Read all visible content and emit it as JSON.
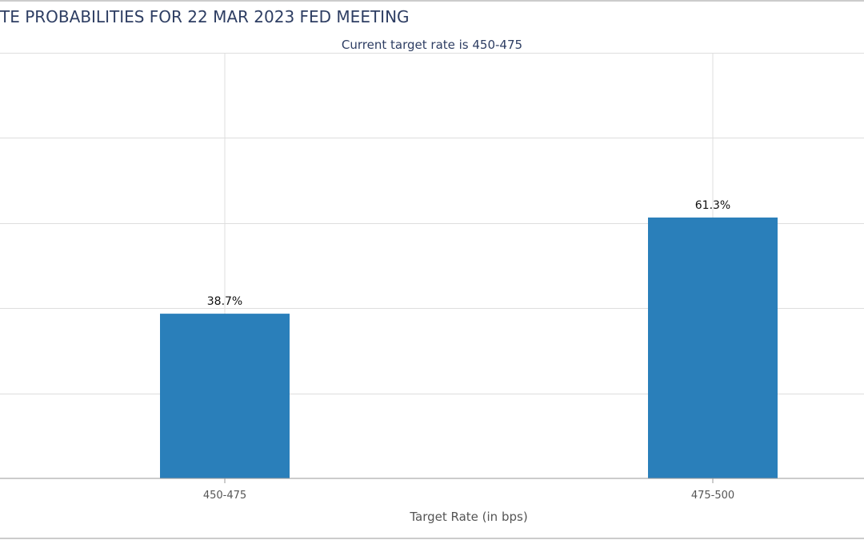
{
  "chart_data": {
    "type": "bar",
    "title": "TE PROBABILITIES FOR 22 MAR 2023 FED MEETING",
    "subtitle": "Current target rate is 450-475",
    "xlabel": "Target Rate (in bps)",
    "ylabel": "",
    "categories": [
      "450-475",
      "475-500"
    ],
    "values": [
      38.7,
      61.3
    ],
    "data_labels": [
      "38.7%",
      "61.3%"
    ],
    "ylim": [
      0,
      100
    ],
    "y_gridlines": [
      0,
      20,
      40,
      60,
      80,
      100
    ],
    "grid": true,
    "legend": "none",
    "colors": {
      "bar": "#2a7fba",
      "grid": "#dedede",
      "axis": "#9a9a9a",
      "frame": "#9a9a9a"
    }
  }
}
